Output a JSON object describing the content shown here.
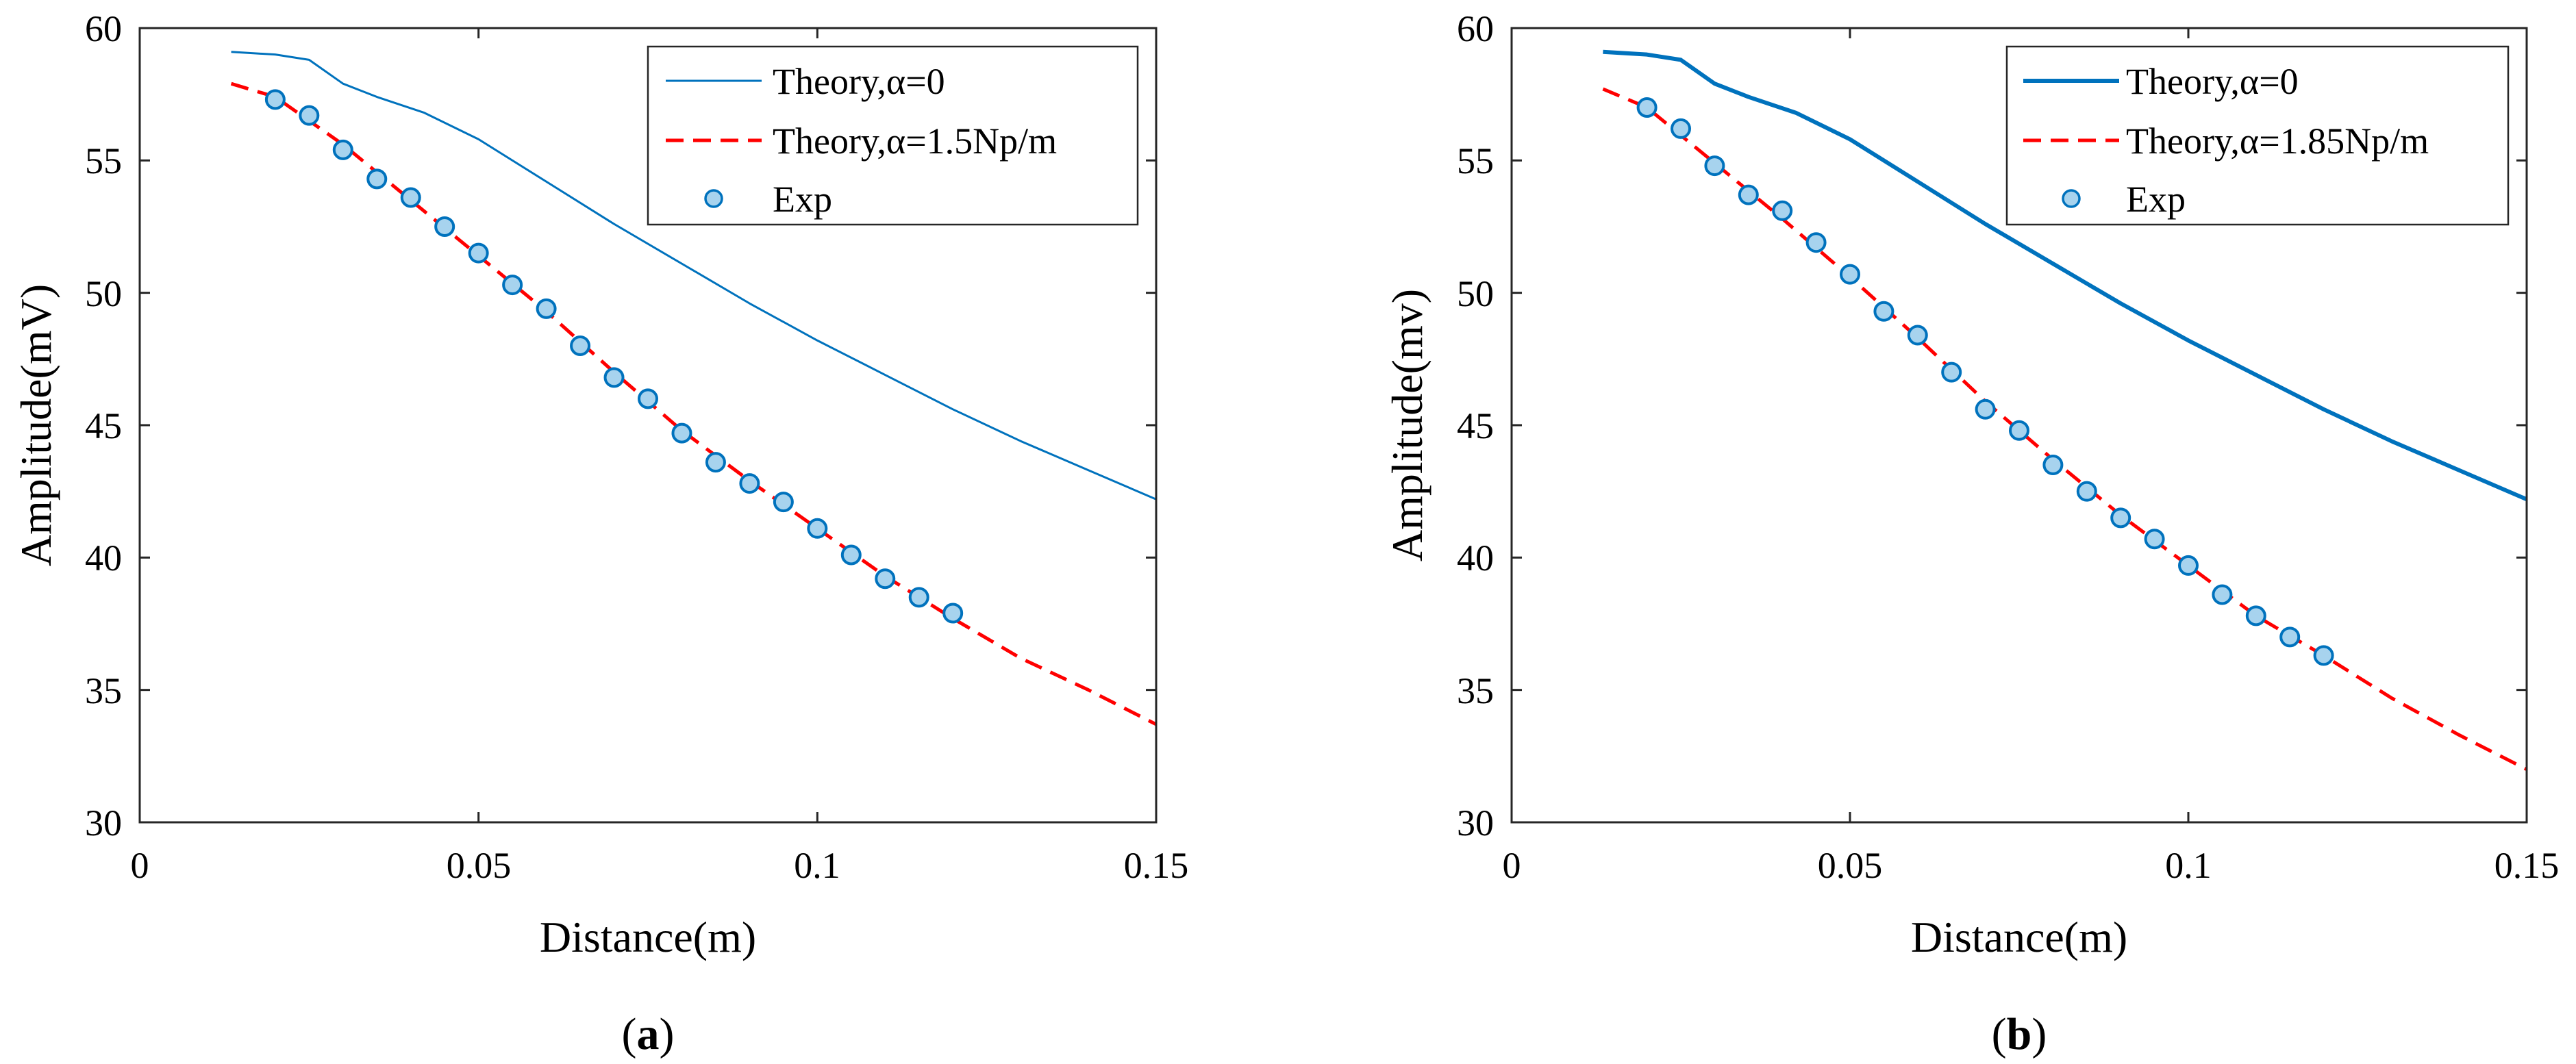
{
  "chart_data": [
    {
      "type": "line",
      "panel": "a",
      "xlabel": "Distance(m)",
      "ylabel": "Amplitude(mV)",
      "xlim": [
        0,
        0.15
      ],
      "ylim": [
        30,
        60
      ],
      "xticks": [
        0,
        0.05,
        0.1,
        0.15
      ],
      "xtick_labels": [
        "0",
        "0.05",
        "0.1",
        "0.15"
      ],
      "yticks": [
        30,
        35,
        40,
        45,
        50,
        55,
        60
      ],
      "ytick_labels": [
        "30",
        "35",
        "40",
        "45",
        "50",
        "55",
        "60"
      ],
      "legend_position": "top-right",
      "series": [
        {
          "name": "Theory,α=0",
          "style": "solid",
          "color": "#0072bd",
          "width": "thin",
          "x": [
            0.0135,
            0.02,
            0.025,
            0.03,
            0.035,
            0.042,
            0.05,
            0.06,
            0.07,
            0.08,
            0.09,
            0.1,
            0.11,
            0.12,
            0.13,
            0.14,
            0.15
          ],
          "y": [
            59.1,
            59.0,
            58.8,
            57.9,
            57.4,
            56.8,
            55.8,
            54.2,
            52.6,
            51.1,
            49.6,
            48.2,
            46.9,
            45.6,
            44.4,
            43.3,
            42.2
          ]
        },
        {
          "name": "Theory,α=1.5Np/m",
          "style": "dashed",
          "color": "#ff0000",
          "x": [
            0.0135,
            0.02,
            0.03,
            0.04,
            0.05,
            0.06,
            0.07,
            0.08,
            0.09,
            0.1,
            0.11,
            0.12,
            0.13,
            0.14,
            0.15
          ],
          "y": [
            57.9,
            57.4,
            55.6,
            53.5,
            51.4,
            49.3,
            47.0,
            44.8,
            42.9,
            41.1,
            39.3,
            37.7,
            36.2,
            35.0,
            33.7
          ]
        },
        {
          "name": "Exp",
          "style": "markers",
          "marker": "circle",
          "color": "#0072bd",
          "fill": "#a7d3ee",
          "x": [
            0.02,
            0.025,
            0.03,
            0.035,
            0.04,
            0.045,
            0.05,
            0.055,
            0.06,
            0.065,
            0.07,
            0.075,
            0.08,
            0.085,
            0.09,
            0.095,
            0.1,
            0.105,
            0.11,
            0.115,
            0.12
          ],
          "y": [
            57.3,
            56.7,
            55.4,
            54.3,
            53.6,
            52.5,
            51.5,
            50.3,
            49.4,
            48.0,
            46.8,
            46.0,
            44.7,
            43.6,
            42.8,
            42.1,
            41.1,
            40.1,
            39.2,
            38.5,
            37.9
          ]
        }
      ],
      "caption_open": "(",
      "caption_letter": "a",
      "caption_close": ")"
    },
    {
      "type": "line",
      "panel": "b",
      "xlabel": "Distance(m)",
      "ylabel": "Amplitude(mv)",
      "xlim": [
        0,
        0.15
      ],
      "ylim": [
        30,
        60
      ],
      "xticks": [
        0,
        0.05,
        0.1,
        0.15
      ],
      "xtick_labels": [
        "0",
        "0.05",
        "0.1",
        "0.15"
      ],
      "yticks": [
        30,
        35,
        40,
        45,
        50,
        55,
        60
      ],
      "ytick_labels": [
        "30",
        "35",
        "40",
        "45",
        "50",
        "55",
        "60"
      ],
      "legend_position": "top-right",
      "series": [
        {
          "name": "Theory,α=0",
          "style": "solid",
          "color": "#0072bd",
          "width": "thick",
          "x": [
            0.0135,
            0.02,
            0.025,
            0.03,
            0.035,
            0.042,
            0.05,
            0.06,
            0.07,
            0.08,
            0.09,
            0.1,
            0.11,
            0.12,
            0.13,
            0.14,
            0.15
          ],
          "y": [
            59.1,
            59.0,
            58.8,
            57.9,
            57.4,
            56.8,
            55.8,
            54.2,
            52.6,
            51.1,
            49.6,
            48.2,
            46.9,
            45.6,
            44.4,
            43.3,
            42.2
          ]
        },
        {
          "name": "Theory,α=1.85Np/m",
          "style": "dashed",
          "color": "#ff0000",
          "x": [
            0.0135,
            0.02,
            0.03,
            0.04,
            0.05,
            0.06,
            0.07,
            0.08,
            0.09,
            0.1,
            0.11,
            0.12,
            0.13,
            0.14,
            0.15
          ],
          "y": [
            57.7,
            57.0,
            54.9,
            52.8,
            50.6,
            48.3,
            45.9,
            43.7,
            41.6,
            39.7,
            37.8,
            36.3,
            34.7,
            33.3,
            32.0
          ]
        },
        {
          "name": "Exp",
          "style": "markers",
          "marker": "circle",
          "color": "#0072bd",
          "fill": "#a7d3ee",
          "x": [
            0.02,
            0.025,
            0.03,
            0.035,
            0.04,
            0.045,
            0.05,
            0.055,
            0.06,
            0.065,
            0.07,
            0.075,
            0.08,
            0.085,
            0.09,
            0.095,
            0.1,
            0.105,
            0.11,
            0.115,
            0.12
          ],
          "y": [
            57.0,
            56.2,
            54.8,
            53.7,
            53.1,
            51.9,
            50.7,
            49.3,
            48.4,
            47.0,
            45.6,
            44.8,
            43.5,
            42.5,
            41.5,
            40.7,
            39.7,
            38.6,
            37.8,
            37.0,
            36.3
          ]
        }
      ],
      "caption_open": "(",
      "caption_letter": "b",
      "caption_close": ")"
    }
  ]
}
